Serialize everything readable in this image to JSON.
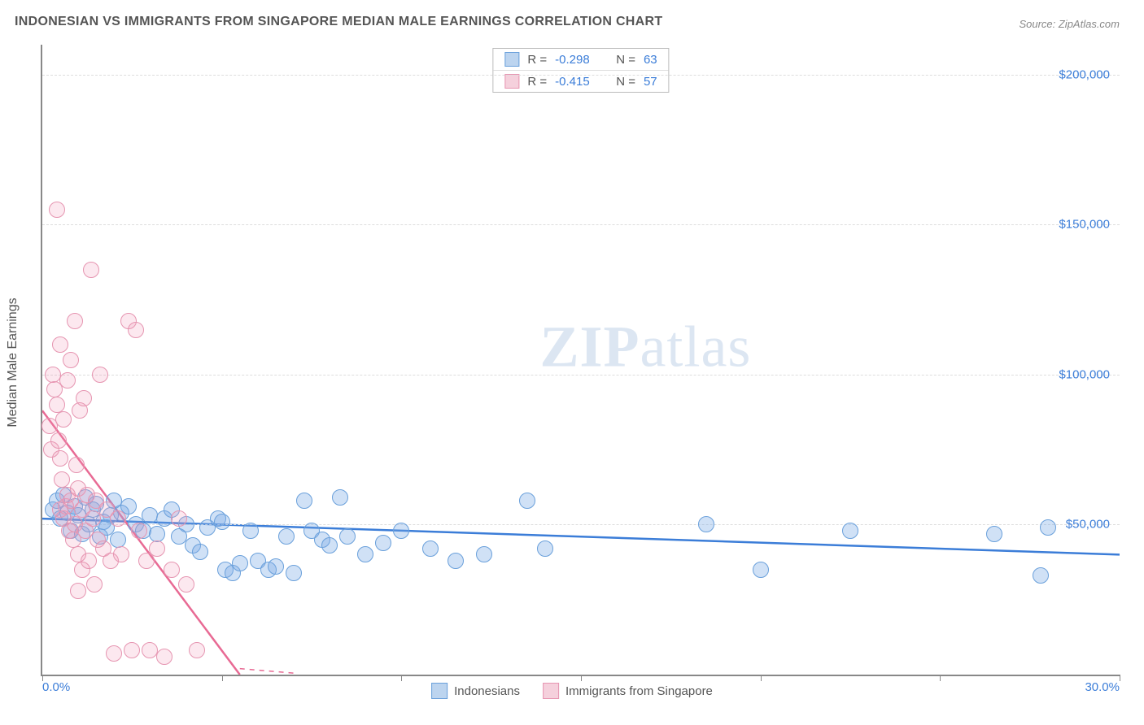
{
  "title": "INDONESIAN VS IMMIGRANTS FROM SINGAPORE MEDIAN MALE EARNINGS CORRELATION CHART",
  "source_prefix": "Source: ",
  "source_name": "ZipAtlas.com",
  "watermark": {
    "bold": "ZIP",
    "rest": "atlas"
  },
  "yaxis_title": "Median Male Earnings",
  "chart": {
    "type": "scatter",
    "background_color": "#ffffff",
    "border_color": "#888888",
    "grid_color": "#dddddd",
    "x": {
      "min": 0.0,
      "max": 30.0,
      "label_min": "0.0%",
      "label_max": "30.0%",
      "ticks": [
        0,
        5,
        10,
        15,
        20,
        25,
        30
      ]
    },
    "y": {
      "min": 0,
      "max": 210000,
      "ticks": [
        50000,
        100000,
        150000,
        200000
      ],
      "tick_labels": [
        "$50,000",
        "$100,000",
        "$150,000",
        "$200,000"
      ]
    },
    "marker_radius": 10,
    "series": [
      {
        "key": "indonesians",
        "name": "Indonesians",
        "fill": "rgba(120,170,230,0.35)",
        "stroke": "#6aa0db",
        "swatch_fill": "#bcd4ef",
        "swatch_border": "#6aa0db",
        "r": "-0.298",
        "n": "63",
        "trend": {
          "x1": 0,
          "y1": 52000,
          "x2": 30,
          "y2": 40000,
          "color": "#3b7dd8",
          "width": 2.5
        },
        "points": [
          [
            0.3,
            55000
          ],
          [
            0.4,
            58000
          ],
          [
            0.5,
            52000
          ],
          [
            0.6,
            60000
          ],
          [
            0.7,
            54000
          ],
          [
            0.8,
            48000
          ],
          [
            0.9,
            56000
          ],
          [
            1.0,
            53000
          ],
          [
            1.1,
            47000
          ],
          [
            1.2,
            59000
          ],
          [
            1.3,
            50000
          ],
          [
            1.4,
            55000
          ],
          [
            1.5,
            57000
          ],
          [
            1.6,
            46000
          ],
          [
            1.7,
            51000
          ],
          [
            1.8,
            49000
          ],
          [
            1.9,
            53000
          ],
          [
            2.0,
            58000
          ],
          [
            2.1,
            45000
          ],
          [
            2.2,
            54000
          ],
          [
            2.4,
            56000
          ],
          [
            2.6,
            50000
          ],
          [
            2.8,
            48000
          ],
          [
            3.0,
            53000
          ],
          [
            3.2,
            47000
          ],
          [
            3.4,
            52000
          ],
          [
            3.6,
            55000
          ],
          [
            3.8,
            46000
          ],
          [
            4.0,
            50000
          ],
          [
            4.2,
            43000
          ],
          [
            4.4,
            41000
          ],
          [
            4.6,
            49000
          ],
          [
            4.9,
            52000
          ],
          [
            5.1,
            35000
          ],
          [
            5.3,
            34000
          ],
          [
            5.5,
            37000
          ],
          [
            5.8,
            48000
          ],
          [
            6.0,
            38000
          ],
          [
            6.3,
            35000
          ],
          [
            6.5,
            36000
          ],
          [
            6.8,
            46000
          ],
          [
            7.0,
            34000
          ],
          [
            7.3,
            58000
          ],
          [
            7.5,
            48000
          ],
          [
            7.8,
            45000
          ],
          [
            8.0,
            43000
          ],
          [
            8.3,
            59000
          ],
          [
            8.5,
            46000
          ],
          [
            9.0,
            40000
          ],
          [
            9.5,
            44000
          ],
          [
            10.0,
            48000
          ],
          [
            10.8,
            42000
          ],
          [
            11.5,
            38000
          ],
          [
            12.3,
            40000
          ],
          [
            13.5,
            58000
          ],
          [
            14.0,
            42000
          ],
          [
            18.5,
            50000
          ],
          [
            20.0,
            35000
          ],
          [
            22.5,
            48000
          ],
          [
            26.5,
            47000
          ],
          [
            27.8,
            33000
          ],
          [
            28.0,
            49000
          ],
          [
            5.0,
            51000
          ]
        ]
      },
      {
        "key": "singapore",
        "name": "Immigrants from Singapore",
        "fill": "rgba(240,150,180,0.22)",
        "stroke": "#e695b1",
        "swatch_fill": "#f5d0dc",
        "swatch_border": "#e695b1",
        "r": "-0.415",
        "n": "57",
        "trend": {
          "x1": 0,
          "y1": 88000,
          "x2": 5.5,
          "y2": 0,
          "color": "#e86a94",
          "width": 2.5
        },
        "trend_dash": {
          "x1": 5.5,
          "y1": 0,
          "x2": 6.5,
          "y2": -16000
        },
        "points": [
          [
            0.2,
            83000
          ],
          [
            0.25,
            75000
          ],
          [
            0.3,
            100000
          ],
          [
            0.35,
            95000
          ],
          [
            0.4,
            90000
          ],
          [
            0.4,
            155000
          ],
          [
            0.45,
            78000
          ],
          [
            0.5,
            110000
          ],
          [
            0.5,
            72000
          ],
          [
            0.55,
            65000
          ],
          [
            0.6,
            85000
          ],
          [
            0.6,
            52000
          ],
          [
            0.65,
            56000
          ],
          [
            0.7,
            98000
          ],
          [
            0.7,
            60000
          ],
          [
            0.75,
            48000
          ],
          [
            0.8,
            105000
          ],
          [
            0.8,
            58000
          ],
          [
            0.85,
            45000
          ],
          [
            0.9,
            118000
          ],
          [
            0.9,
            50000
          ],
          [
            0.95,
            70000
          ],
          [
            1.0,
            62000
          ],
          [
            1.0,
            40000
          ],
          [
            1.05,
            88000
          ],
          [
            1.1,
            55000
          ],
          [
            1.1,
            35000
          ],
          [
            1.15,
            92000
          ],
          [
            1.2,
            48000
          ],
          [
            1.25,
            60000
          ],
          [
            1.3,
            38000
          ],
          [
            1.35,
            135000
          ],
          [
            1.4,
            52000
          ],
          [
            1.45,
            30000
          ],
          [
            1.5,
            58000
          ],
          [
            1.55,
            45000
          ],
          [
            1.6,
            100000
          ],
          [
            1.7,
            42000
          ],
          [
            1.8,
            55000
          ],
          [
            1.9,
            38000
          ],
          [
            2.0,
            7000
          ],
          [
            2.1,
            52000
          ],
          [
            2.2,
            40000
          ],
          [
            2.4,
            118000
          ],
          [
            2.5,
            8000
          ],
          [
            2.6,
            115000
          ],
          [
            2.7,
            48000
          ],
          [
            2.9,
            38000
          ],
          [
            3.0,
            8000
          ],
          [
            3.2,
            42000
          ],
          [
            3.4,
            6000
          ],
          [
            3.6,
            35000
          ],
          [
            3.8,
            52000
          ],
          [
            4.0,
            30000
          ],
          [
            4.3,
            8000
          ],
          [
            1.0,
            28000
          ],
          [
            0.5,
            55000
          ]
        ]
      }
    ],
    "stats_prefix_r": "R = ",
    "stats_prefix_n": "N = "
  },
  "bottom_legend": [
    {
      "series": "indonesians"
    },
    {
      "series": "singapore"
    }
  ]
}
